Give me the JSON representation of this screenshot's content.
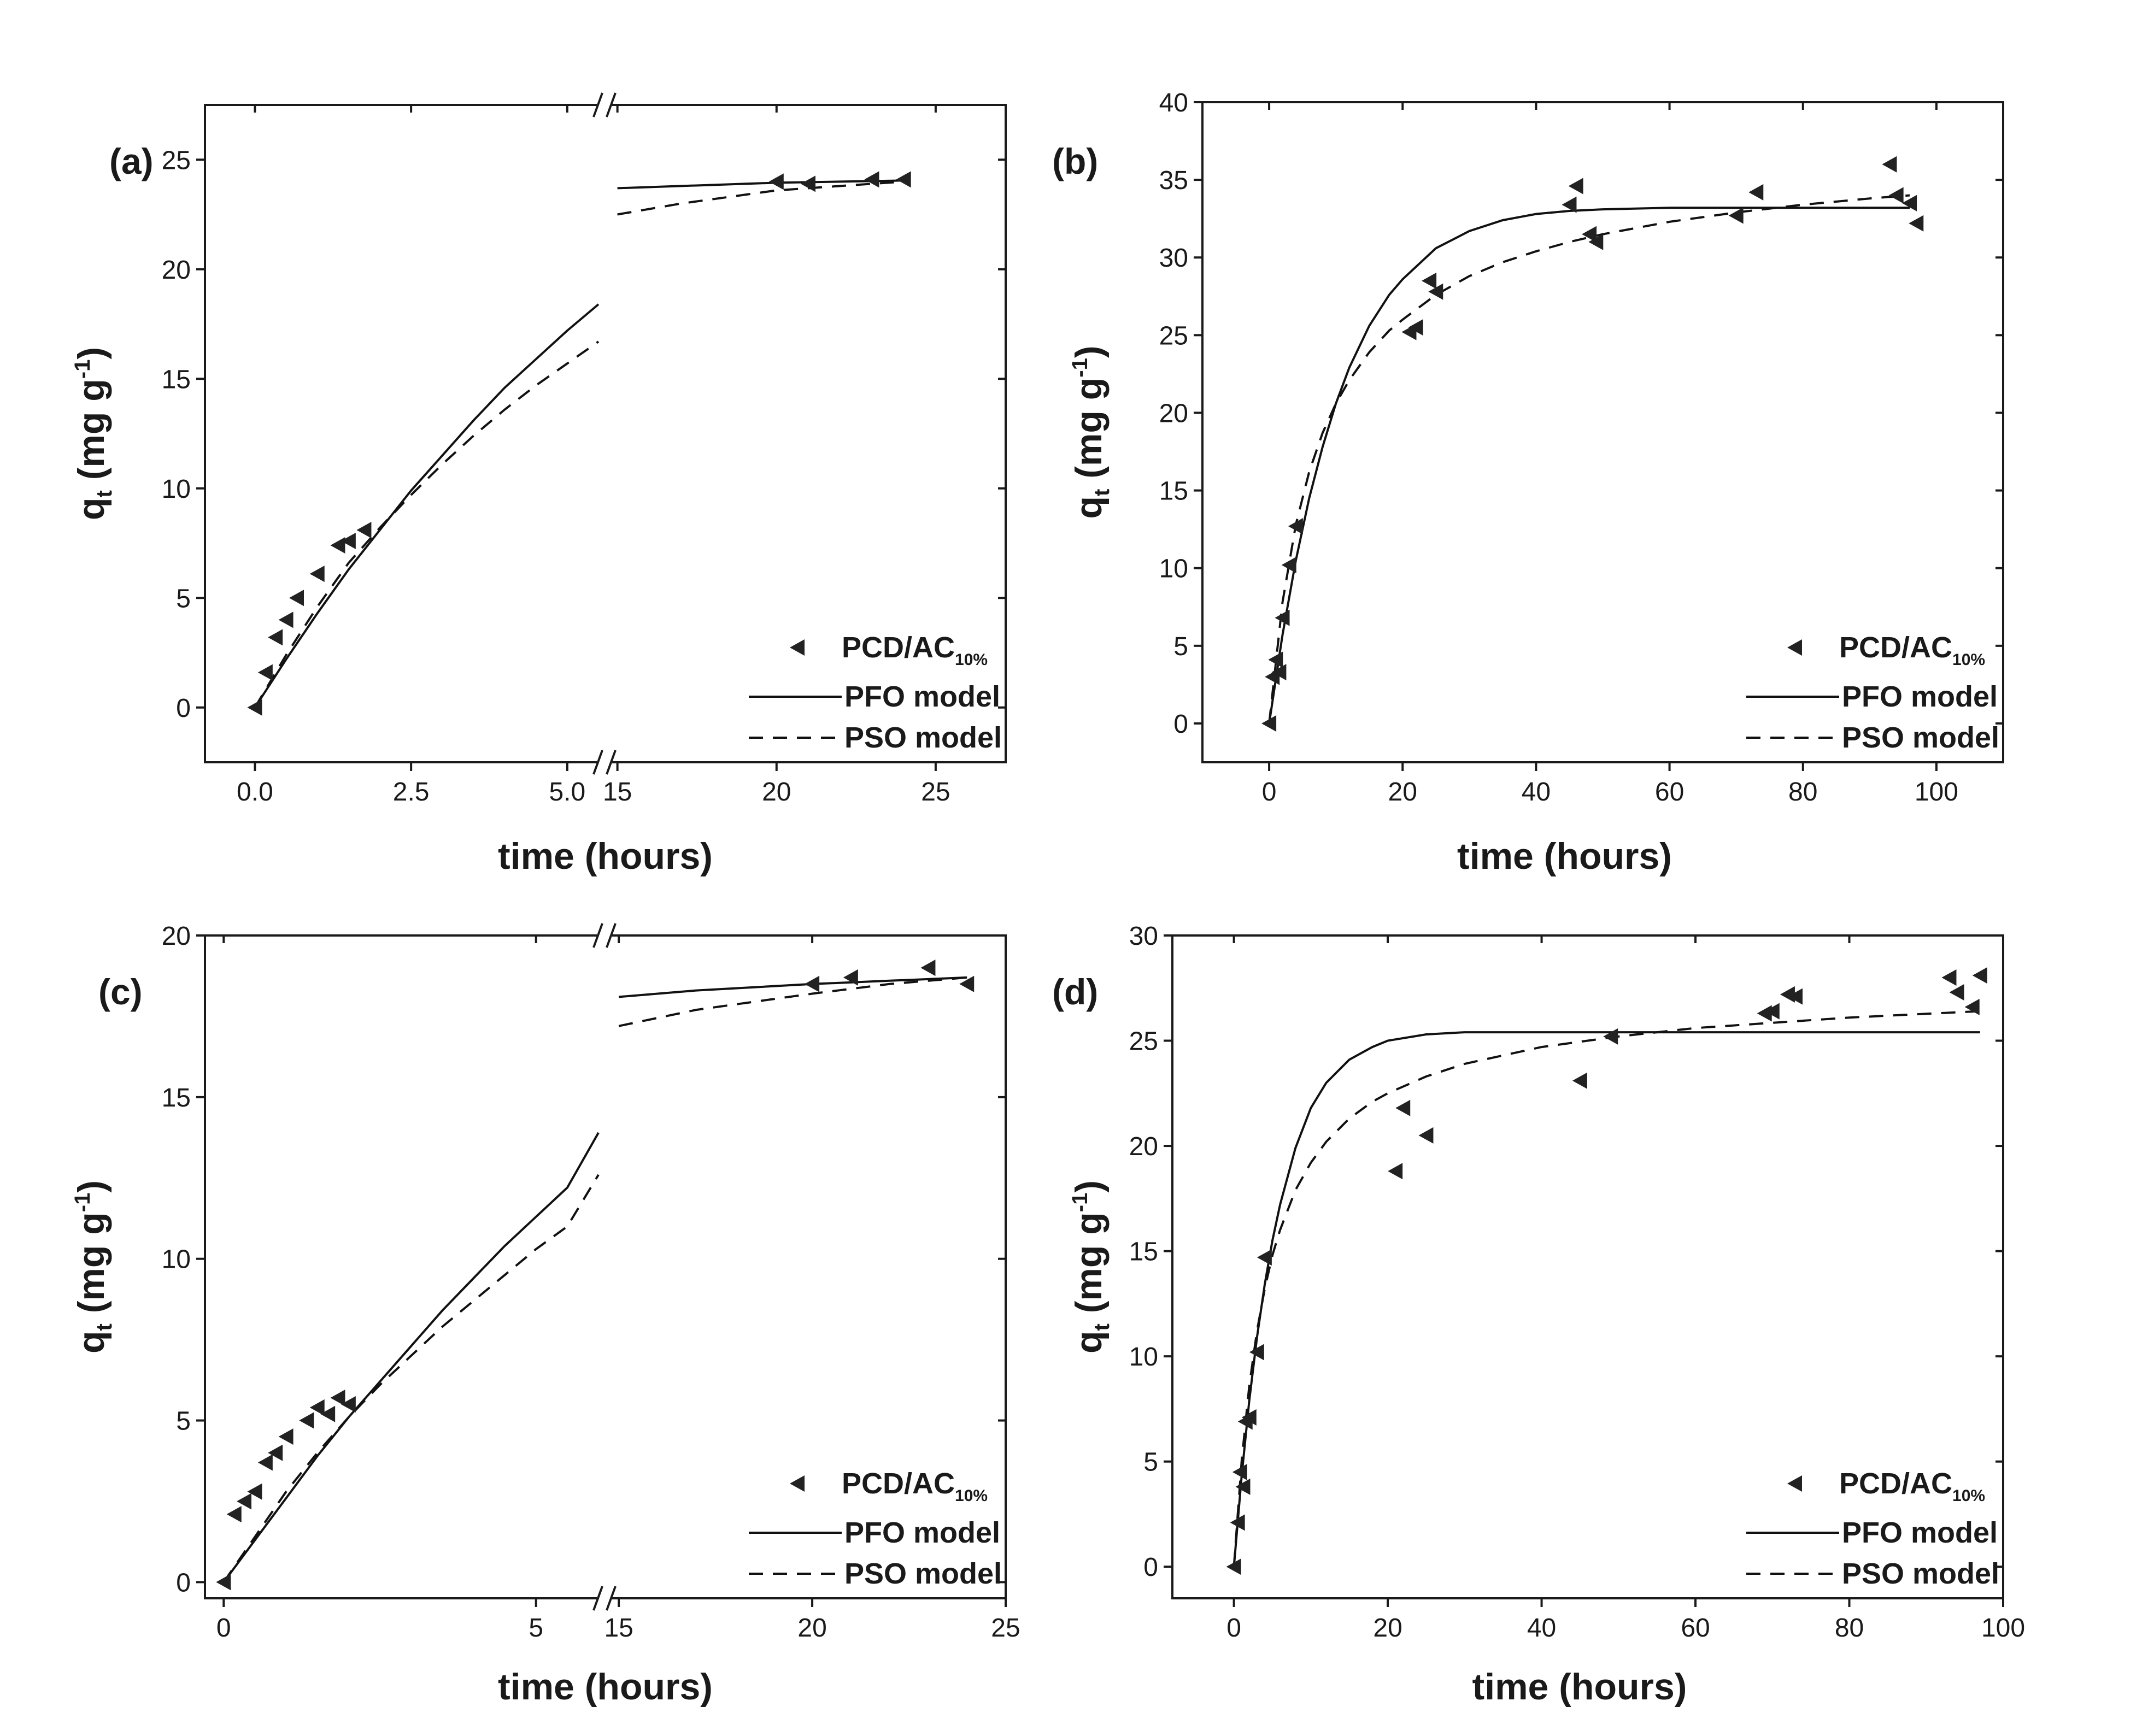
{
  "figure": {
    "panels": [
      "a",
      "b",
      "c",
      "d"
    ]
  },
  "chart_data": [
    {
      "id": "a",
      "type": "scatter",
      "panel_label": "(a)",
      "title": "",
      "xlabel": "time (hours)",
      "ylabel": "qt (mg g-1)",
      "ylim": [
        -2.5,
        27.5
      ],
      "yticks": [
        0,
        5,
        10,
        15,
        20,
        25
      ],
      "ytick_labels": [
        "0",
        "5",
        "10",
        "15",
        "20",
        "25"
      ],
      "broken_axis": true,
      "segments": [
        {
          "xlim": [
            -0.8,
            5.5
          ],
          "xticks": [
            0,
            2.5,
            5.0
          ],
          "xtick_labels": [
            "0.0",
            "2.5",
            "5.0"
          ]
        },
        {
          "xlim": [
            14.8,
            27.2
          ],
          "xticks": [
            15,
            20,
            25
          ],
          "xtick_labels": [
            "15",
            "20",
            "25"
          ]
        }
      ],
      "legend": {
        "position": "bottom-right",
        "entries": [
          "PCD/AC",
          "PFO model",
          "PSO model"
        ],
        "marker_subscript": "10%"
      },
      "series": [
        {
          "name": "PCD/AC10%",
          "kind": "scatter",
          "marker": "triangle-left",
          "x": [
            0,
            0.17,
            0.33,
            0.5,
            0.67,
            1.0,
            1.33,
            1.5,
            1.75,
            20,
            21,
            23,
            24
          ],
          "y": [
            0,
            1.6,
            3.2,
            4.0,
            5.0,
            6.1,
            7.4,
            7.6,
            8.1,
            24.0,
            23.9,
            24.1,
            24.1
          ]
        },
        {
          "name": "PFO model",
          "kind": "line",
          "style": "solid",
          "x": [
            0,
            0.5,
            1,
            1.5,
            2,
            2.5,
            3,
            3.5,
            4,
            4.5,
            5,
            5.5,
            15,
            17,
            20,
            22,
            24
          ],
          "y": [
            0,
            2.2,
            4.3,
            6.3,
            8.1,
            9.9,
            11.5,
            13.1,
            14.6,
            15.9,
            17.2,
            18.4,
            23.7,
            23.8,
            23.95,
            24.0,
            24.05
          ]
        },
        {
          "name": "PSO model",
          "kind": "line",
          "style": "dashed",
          "x": [
            0,
            0.5,
            1,
            1.5,
            2,
            2.5,
            3,
            3.5,
            4,
            4.5,
            5,
            5.5,
            15,
            17,
            20,
            22,
            24
          ],
          "y": [
            0,
            2.4,
            4.6,
            6.6,
            8.2,
            9.7,
            11.1,
            12.4,
            13.6,
            14.7,
            15.7,
            16.7,
            22.5,
            23.0,
            23.6,
            23.8,
            24.0
          ]
        }
      ]
    },
    {
      "id": "b",
      "type": "scatter",
      "panel_label": "(b)",
      "title": "",
      "xlabel": "time (hours)",
      "ylabel": "qt (mg g-1)",
      "xlim": [
        -10,
        110
      ],
      "ylim": [
        -2.5,
        40
      ],
      "xticks": [
        0,
        20,
        40,
        60,
        80,
        100
      ],
      "xtick_labels": [
        "0",
        "20",
        "40",
        "60",
        "80",
        "100"
      ],
      "yticks": [
        0,
        5,
        10,
        15,
        20,
        25,
        30,
        35,
        40
      ],
      "ytick_labels": [
        "0",
        "5",
        "10",
        "15",
        "20",
        "25",
        "30",
        "35",
        "40"
      ],
      "legend": {
        "position": "bottom-right",
        "entries": [
          "PCD/AC",
          "PFO model",
          "PSO model"
        ],
        "marker_subscript": "10%"
      },
      "series": [
        {
          "name": "PCD/AC10%",
          "kind": "scatter",
          "marker": "triangle-left",
          "x": [
            0,
            0.5,
            1,
            1.5,
            2,
            3,
            4,
            21,
            22,
            24,
            25,
            45,
            46,
            48,
            49,
            70,
            73,
            93,
            94,
            96,
            97
          ],
          "y": [
            0,
            3.0,
            4.1,
            3.3,
            6.8,
            10.2,
            12.7,
            25.2,
            25.5,
            28.5,
            27.8,
            33.4,
            34.6,
            31.5,
            31.0,
            32.7,
            34.2,
            36.0,
            34.0,
            33.5,
            32.2
          ]
        },
        {
          "name": "PFO model",
          "kind": "line",
          "style": "solid",
          "x": [
            0,
            2,
            4,
            6,
            8,
            10,
            12,
            15,
            18,
            20,
            25,
            30,
            35,
            40,
            45,
            50,
            60,
            70,
            80,
            90,
            96
          ],
          "y": [
            0,
            5.7,
            10.5,
            14.5,
            17.8,
            20.6,
            22.9,
            25.6,
            27.6,
            28.6,
            30.6,
            31.7,
            32.4,
            32.8,
            33.0,
            33.1,
            33.2,
            33.2,
            33.2,
            33.2,
            33.2
          ]
        },
        {
          "name": "PSO model",
          "kind": "line",
          "style": "dashed",
          "x": [
            0,
            2,
            4,
            6,
            8,
            10,
            12,
            15,
            18,
            20,
            25,
            30,
            35,
            40,
            45,
            50,
            60,
            70,
            80,
            90,
            96
          ],
          "y": [
            0,
            7.8,
            12.8,
            16.2,
            18.7,
            20.6,
            22.1,
            23.9,
            25.3,
            26.0,
            27.6,
            28.8,
            29.7,
            30.4,
            31.0,
            31.5,
            32.3,
            32.9,
            33.4,
            33.8,
            34.0
          ]
        }
      ]
    },
    {
      "id": "c",
      "type": "scatter",
      "panel_label": "(c)",
      "title": "",
      "xlabel": "time (hours)",
      "ylabel": "qt (mg g-1)",
      "ylim": [
        -0.5,
        20
      ],
      "yticks": [
        0,
        5,
        10,
        15,
        20
      ],
      "ytick_labels": [
        "0",
        "5",
        "10",
        "15",
        "20"
      ],
      "broken_axis": true,
      "segments": [
        {
          "xlim": [
            -0.3,
            6.0
          ],
          "xticks": [
            0,
            5
          ],
          "xtick_labels": [
            "0",
            "5"
          ]
        },
        {
          "xlim": [
            14.8,
            25.0
          ],
          "xticks": [
            15,
            20,
            25
          ],
          "xtick_labels": [
            "15",
            "20",
            "25"
          ]
        }
      ],
      "legend": {
        "position": "bottom-right",
        "entries": [
          "PCD/AC",
          "PFO model",
          "PSO model"
        ],
        "marker_subscript": "10%"
      },
      "series": [
        {
          "name": "PCD/AC10%",
          "kind": "scatter",
          "marker": "triangle-left",
          "x": [
            0,
            0.17,
            0.33,
            0.5,
            0.67,
            0.83,
            1.0,
            1.33,
            1.5,
            1.67,
            1.83,
            2.0,
            20,
            21,
            23,
            24
          ],
          "y": [
            0,
            2.1,
            2.5,
            2.8,
            3.7,
            4.0,
            4.5,
            5.0,
            5.4,
            5.2,
            5.7,
            5.5,
            18.5,
            18.7,
            19.0,
            18.5
          ]
        },
        {
          "name": "PFO model",
          "kind": "line",
          "style": "solid",
          "x": [
            0,
            0.5,
            1,
            1.5,
            2,
            2.5,
            3,
            3.5,
            4,
            4.5,
            5,
            5.5,
            6.0,
            15,
            17,
            20,
            22,
            24
          ],
          "y": [
            0,
            1.3,
            2.6,
            3.9,
            5.1,
            6.2,
            7.3,
            8.4,
            9.4,
            10.4,
            11.3,
            12.2,
            13.9,
            18.1,
            18.3,
            18.5,
            18.6,
            18.7
          ]
        },
        {
          "name": "PSO model",
          "kind": "line",
          "style": "dashed",
          "x": [
            0,
            0.5,
            1,
            1.5,
            2,
            2.5,
            3,
            3.5,
            4,
            4.5,
            5,
            5.5,
            6.0,
            15,
            17,
            20,
            22,
            24
          ],
          "y": [
            0,
            1.4,
            2.8,
            4.0,
            5.1,
            6.1,
            7.0,
            7.9,
            8.7,
            9.5,
            10.3,
            11.0,
            12.6,
            17.2,
            17.7,
            18.2,
            18.5,
            18.7
          ]
        }
      ]
    },
    {
      "id": "d",
      "type": "scatter",
      "panel_label": "(d)",
      "title": "",
      "xlabel": "time (hours)",
      "ylabel": "qt (mg g-1)",
      "xlim": [
        -8,
        100
      ],
      "ylim": [
        -1.5,
        30
      ],
      "xticks": [
        0,
        20,
        40,
        60,
        80,
        100
      ],
      "xtick_labels": [
        "0",
        "20",
        "40",
        "60",
        "80",
        "100"
      ],
      "yticks": [
        0,
        5,
        10,
        15,
        20,
        25,
        30
      ],
      "ytick_labels": [
        "0",
        "5",
        "10",
        "15",
        "20",
        "25",
        "30"
      ],
      "legend": {
        "position": "bottom-right",
        "entries": [
          "PCD/AC",
          "PFO model",
          "PSO model"
        ],
        "marker_subscript": "10%"
      },
      "series": [
        {
          "name": "PCD/AC10%",
          "kind": "scatter",
          "marker": "triangle-left",
          "x": [
            0,
            0.5,
            0.8,
            1.2,
            1.5,
            2,
            3,
            4,
            21,
            22,
            25,
            45,
            49,
            69,
            70,
            72,
            73,
            93,
            94,
            96,
            97
          ],
          "y": [
            0,
            2.1,
            4.5,
            3.8,
            6.9,
            7.1,
            10.2,
            14.7,
            18.8,
            21.8,
            20.5,
            23.1,
            25.2,
            26.3,
            26.4,
            27.2,
            27.1,
            28.0,
            27.3,
            26.6,
            28.1
          ]
        },
        {
          "name": "PFO model",
          "kind": "line",
          "style": "solid",
          "x": [
            0,
            1,
            2,
            3,
            4,
            5,
            6,
            8,
            10,
            12,
            15,
            18,
            20,
            25,
            30,
            40,
            50,
            60,
            80,
            97
          ],
          "y": [
            0,
            4.3,
            7.9,
            10.9,
            13.4,
            15.5,
            17.2,
            19.9,
            21.8,
            23.0,
            24.1,
            24.7,
            25.0,
            25.3,
            25.4,
            25.4,
            25.4,
            25.4,
            25.4,
            25.4
          ]
        },
        {
          "name": "PSO model",
          "kind": "line",
          "style": "dashed",
          "x": [
            0,
            1,
            2,
            3,
            4,
            5,
            6,
            8,
            10,
            12,
            15,
            18,
            20,
            25,
            30,
            40,
            50,
            60,
            80,
            97
          ],
          "y": [
            0,
            5.0,
            8.6,
            11.2,
            13.2,
            14.8,
            16.0,
            17.9,
            19.2,
            20.2,
            21.3,
            22.1,
            22.5,
            23.3,
            23.9,
            24.7,
            25.2,
            25.6,
            26.1,
            26.4
          ]
        }
      ]
    }
  ]
}
